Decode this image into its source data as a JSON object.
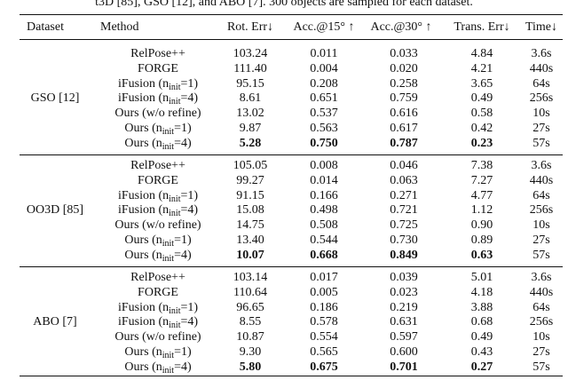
{
  "caption": "t3D [85], GSO [12], and ABO [7]. 300 objects are sampled for each dataset.",
  "table": {
    "header": [
      "Dataset",
      "Method",
      "Rot. Err↓",
      "Acc.@15° ↑",
      "Acc.@30° ↑",
      "Trans. Err↓",
      "Time↓"
    ],
    "groups": [
      {
        "dataset": "GSO [12]",
        "rows": [
          {
            "method": {
              "pre": "RelPose++"
            },
            "cells": [
              "103.24",
              "0.011",
              "0.033",
              "4.84",
              "3.6s"
            ]
          },
          {
            "method": {
              "pre": "FORGE"
            },
            "cells": [
              "111.40",
              "0.004",
              "0.020",
              "4.21",
              "440s"
            ]
          },
          {
            "method": {
              "pre": "iFusion (n",
              "sub": "init",
              "post": "=1)"
            },
            "cells": [
              "95.15",
              "0.208",
              "0.258",
              "3.65",
              "64s"
            ]
          },
          {
            "method": {
              "pre": "iFusion (n",
              "sub": "init",
              "post": "=4)"
            },
            "cells": [
              "8.61",
              "0.651",
              "0.759",
              "0.49",
              "256s"
            ]
          },
          {
            "method": {
              "pre": "Ours (w/o refine)"
            },
            "cells": [
              "13.02",
              "0.537",
              "0.616",
              "0.58",
              "10s"
            ]
          },
          {
            "method": {
              "pre": "Ours (n",
              "sub": "init",
              "post": "=1)"
            },
            "cells": [
              "9.87",
              "0.563",
              "0.617",
              "0.42",
              "27s"
            ]
          },
          {
            "method": {
              "pre": "Ours (n",
              "sub": "init",
              "post": "=4)"
            },
            "cells": [
              "5.28",
              "0.750",
              "0.787",
              "0.23",
              "57s"
            ],
            "bold": [
              true,
              true,
              true,
              true,
              false
            ]
          }
        ]
      },
      {
        "dataset": "OO3D [85]",
        "rows": [
          {
            "method": {
              "pre": "RelPose++"
            },
            "cells": [
              "105.05",
              "0.008",
              "0.046",
              "7.38",
              "3.6s"
            ]
          },
          {
            "method": {
              "pre": "FORGE"
            },
            "cells": [
              "99.27",
              "0.014",
              "0.063",
              "7.27",
              "440s"
            ]
          },
          {
            "method": {
              "pre": "iFusion (n",
              "sub": "init",
              "post": "=1)"
            },
            "cells": [
              "91.15",
              "0.166",
              "0.271",
              "4.77",
              "64s"
            ]
          },
          {
            "method": {
              "pre": "iFusion (n",
              "sub": "init",
              "post": "=4)"
            },
            "cells": [
              "15.08",
              "0.498",
              "0.721",
              "1.12",
              "256s"
            ]
          },
          {
            "method": {
              "pre": "Ours (w/o refine)"
            },
            "cells": [
              "14.75",
              "0.508",
              "0.725",
              "0.90",
              "10s"
            ]
          },
          {
            "method": {
              "pre": "Ours (n",
              "sub": "init",
              "post": "=1)"
            },
            "cells": [
              "13.40",
              "0.544",
              "0.730",
              "0.89",
              "27s"
            ]
          },
          {
            "method": {
              "pre": "Ours (n",
              "sub": "init",
              "post": "=4)"
            },
            "cells": [
              "10.07",
              "0.668",
              "0.849",
              "0.63",
              "57s"
            ],
            "bold": [
              true,
              true,
              true,
              true,
              false
            ]
          }
        ]
      },
      {
        "dataset": "ABO [7]",
        "rows": [
          {
            "method": {
              "pre": "RelPose++"
            },
            "cells": [
              "103.14",
              "0.017",
              "0.039",
              "5.01",
              "3.6s"
            ]
          },
          {
            "method": {
              "pre": "FORGE"
            },
            "cells": [
              "110.64",
              "0.005",
              "0.023",
              "4.18",
              "440s"
            ]
          },
          {
            "method": {
              "pre": "iFusion (n",
              "sub": "init",
              "post": "=1)"
            },
            "cells": [
              "96.65",
              "0.186",
              "0.219",
              "3.88",
              "64s"
            ]
          },
          {
            "method": {
              "pre": "iFusion (n",
              "sub": "init",
              "post": "=4)"
            },
            "cells": [
              "8.55",
              "0.578",
              "0.631",
              "0.68",
              "256s"
            ]
          },
          {
            "method": {
              "pre": "Ours (w/o refine)"
            },
            "cells": [
              "10.87",
              "0.554",
              "0.597",
              "0.49",
              "10s"
            ]
          },
          {
            "method": {
              "pre": "Ours (n",
              "sub": "init",
              "post": "=1)"
            },
            "cells": [
              "9.30",
              "0.565",
              "0.600",
              "0.43",
              "27s"
            ]
          },
          {
            "method": {
              "pre": "Ours (n",
              "sub": "init",
              "post": "=4)"
            },
            "cells": [
              "5.80",
              "0.675",
              "0.701",
              "0.27",
              "57s"
            ],
            "bold": [
              true,
              true,
              true,
              true,
              false
            ]
          }
        ]
      }
    ]
  }
}
